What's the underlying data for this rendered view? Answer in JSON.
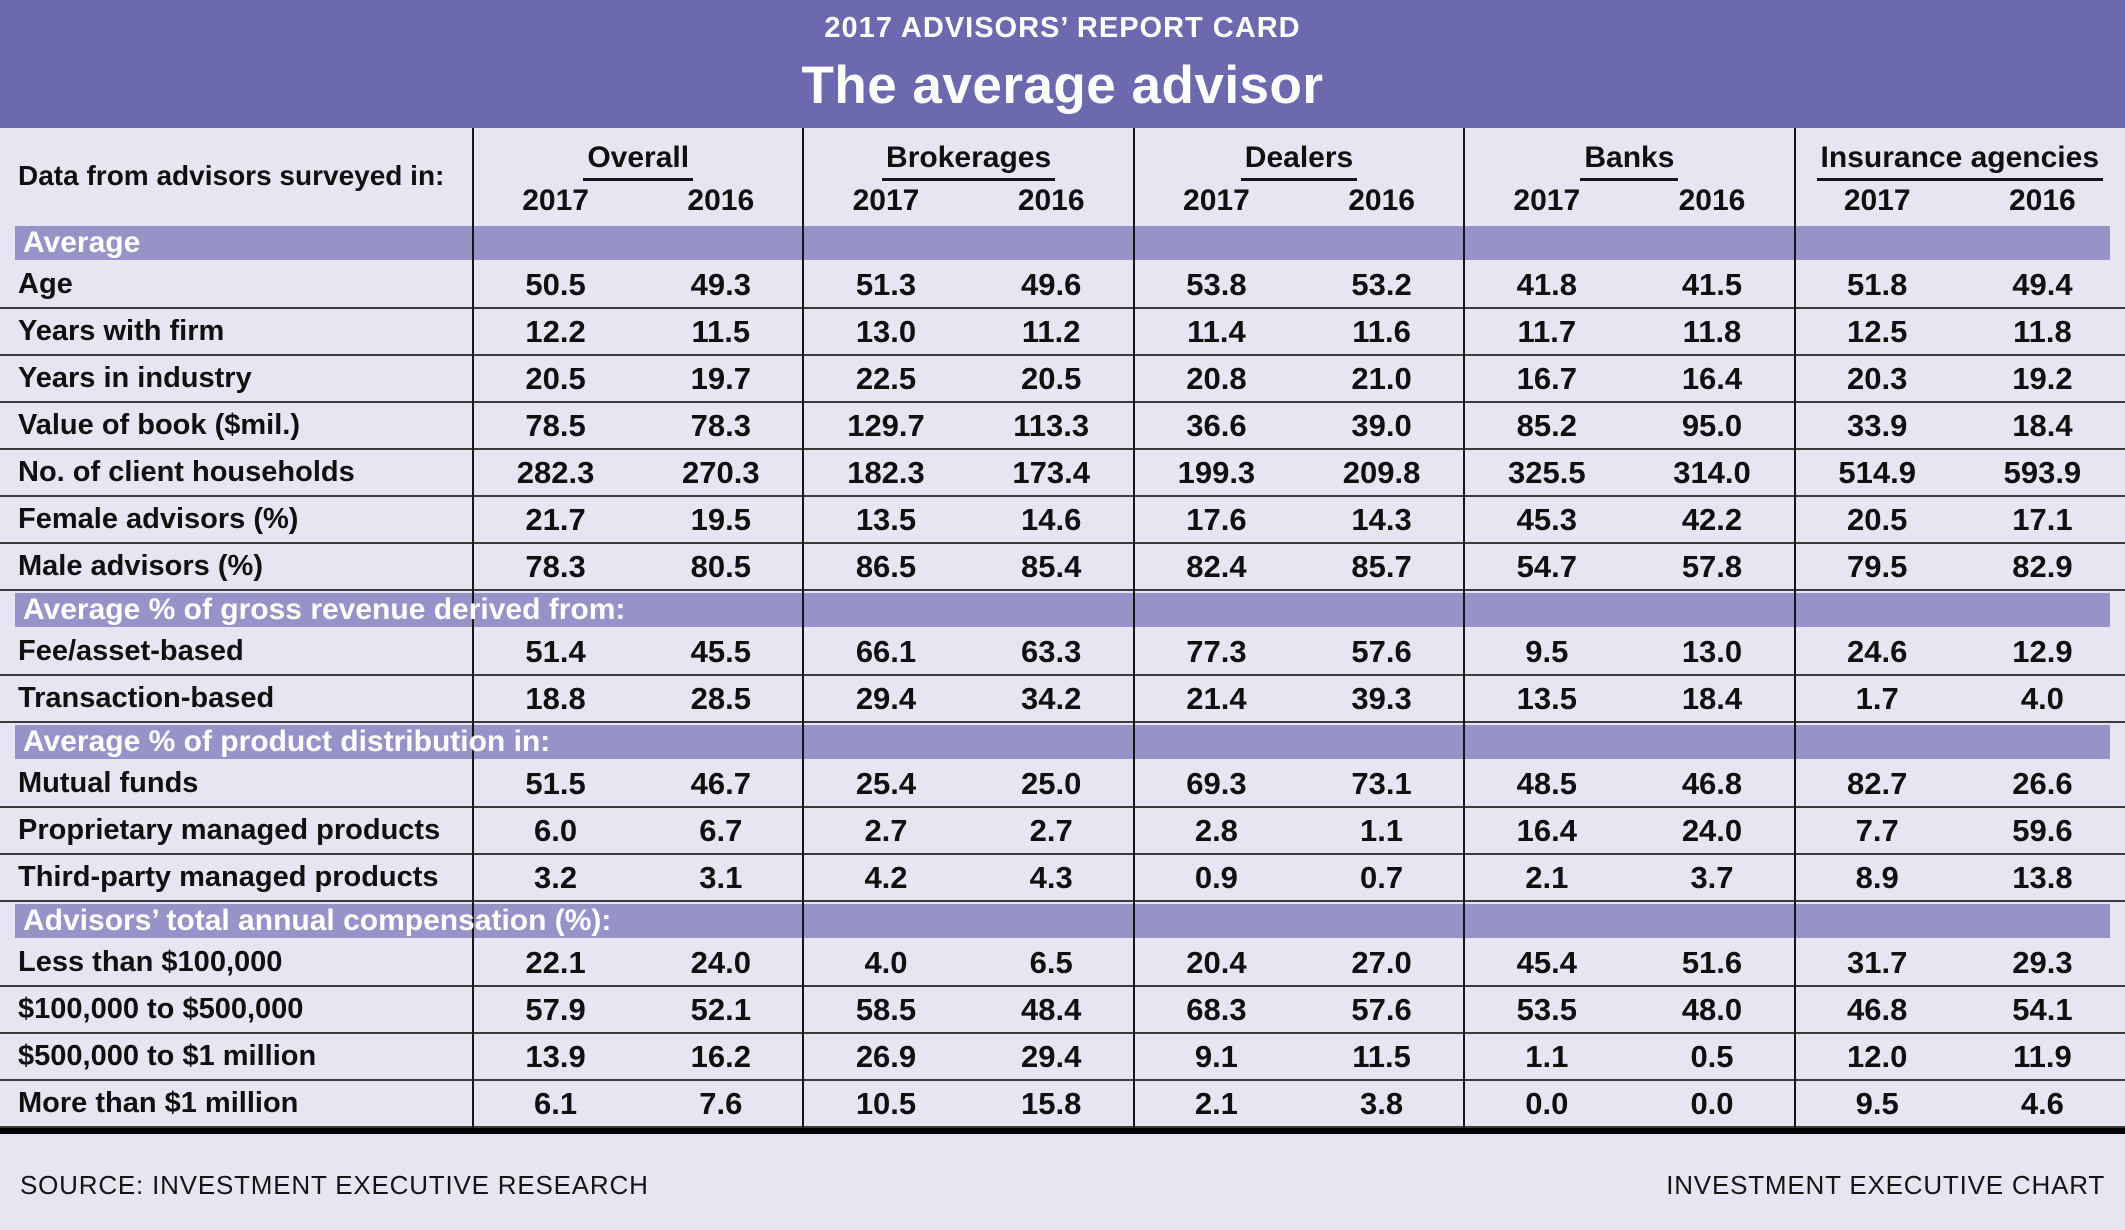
{
  "chart_data": {
    "type": "table",
    "kicker": "2017 ADVISORS’ REPORT CARD",
    "title": "The average advisor",
    "corner_label": "Data from advisors surveyed in:",
    "column_groups": [
      "Overall",
      "Brokerages",
      "Dealers",
      "Banks",
      "Insurance agencies"
    ],
    "sub_columns": [
      "2017",
      "2016"
    ],
    "sections": [
      {
        "label": "Average",
        "rows": [
          {
            "label": "Age",
            "values": [
              "50.5",
              "49.3",
              "51.3",
              "49.6",
              "53.8",
              "53.2",
              "41.8",
              "41.5",
              "51.8",
              "49.4"
            ]
          },
          {
            "label": "Years with firm",
            "values": [
              "12.2",
              "11.5",
              "13.0",
              "11.2",
              "11.4",
              "11.6",
              "11.7",
              "11.8",
              "12.5",
              "11.8"
            ]
          },
          {
            "label": "Years in industry",
            "values": [
              "20.5",
              "19.7",
              "22.5",
              "20.5",
              "20.8",
              "21.0",
              "16.7",
              "16.4",
              "20.3",
              "19.2"
            ]
          },
          {
            "label": "Value of book ($mil.)",
            "values": [
              "78.5",
              "78.3",
              "129.7",
              "113.3",
              "36.6",
              "39.0",
              "85.2",
              "95.0",
              "33.9",
              "18.4"
            ]
          },
          {
            "label": "No. of client households",
            "values": [
              "282.3",
              "270.3",
              "182.3",
              "173.4",
              "199.3",
              "209.8",
              "325.5",
              "314.0",
              "514.9",
              "593.9"
            ]
          },
          {
            "label": "Female advisors (%)",
            "values": [
              "21.7",
              "19.5",
              "13.5",
              "14.6",
              "17.6",
              "14.3",
              "45.3",
              "42.2",
              "20.5",
              "17.1"
            ]
          },
          {
            "label": "Male advisors (%)",
            "values": [
              "78.3",
              "80.5",
              "86.5",
              "85.4",
              "82.4",
              "85.7",
              "54.7",
              "57.8",
              "79.5",
              "82.9"
            ]
          }
        ]
      },
      {
        "label": "Average % of gross revenue derived from:",
        "rows": [
          {
            "label": "Fee/asset-based",
            "values": [
              "51.4",
              "45.5",
              "66.1",
              "63.3",
              "77.3",
              "57.6",
              "9.5",
              "13.0",
              "24.6",
              "12.9"
            ]
          },
          {
            "label": "Transaction-based",
            "values": [
              "18.8",
              "28.5",
              "29.4",
              "34.2",
              "21.4",
              "39.3",
              "13.5",
              "18.4",
              "1.7",
              "4.0"
            ]
          }
        ]
      },
      {
        "label": "Average % of product distribution in:",
        "rows": [
          {
            "label": "Mutual funds",
            "values": [
              "51.5",
              "46.7",
              "25.4",
              "25.0",
              "69.3",
              "73.1",
              "48.5",
              "46.8",
              "82.7",
              "26.6"
            ]
          },
          {
            "label": "Proprietary managed products",
            "values": [
              "6.0",
              "6.7",
              "2.7",
              "2.7",
              "2.8",
              "1.1",
              "16.4",
              "24.0",
              "7.7",
              "59.6"
            ]
          },
          {
            "label": "Third-party managed products",
            "values": [
              "3.2",
              "3.1",
              "4.2",
              "4.3",
              "0.9",
              "0.7",
              "2.1",
              "3.7",
              "8.9",
              "13.8"
            ]
          }
        ]
      },
      {
        "label": "Advisors’ total annual compensation (%):",
        "rows": [
          {
            "label": "Less than $100,000",
            "values": [
              "22.1",
              "24.0",
              "4.0",
              "6.5",
              "20.4",
              "27.0",
              "45.4",
              "51.6",
              "31.7",
              "29.3"
            ]
          },
          {
            "label": "$100,000 to $500,000",
            "values": [
              "57.9",
              "52.1",
              "58.5",
              "48.4",
              "68.3",
              "57.6",
              "53.5",
              "48.0",
              "46.8",
              "54.1"
            ]
          },
          {
            "label": "$500,000 to $1 million",
            "values": [
              "13.9",
              "16.2",
              "26.9",
              "29.4",
              "9.1",
              "11.5",
              "1.1",
              "0.5",
              "12.0",
              "11.9"
            ]
          },
          {
            "label": "More than $1 million",
            "values": [
              "6.1",
              "7.6",
              "10.5",
              "15.8",
              "2.1",
              "3.8",
              "0.0",
              "0.0",
              "9.5",
              "4.6"
            ]
          }
        ]
      }
    ],
    "source": "SOURCE: INVESTMENT EXECUTIVE RESEARCH",
    "credit": "INVESTMENT EXECUTIVE CHART"
  },
  "colors": {
    "banner_purple": "#6d69ae",
    "section_band_purple": "#9792c7",
    "row_background": "#e7e5f2",
    "rule_gray": "#3c3c3c",
    "separator_black": "#161616",
    "text_black": "#101010"
  }
}
